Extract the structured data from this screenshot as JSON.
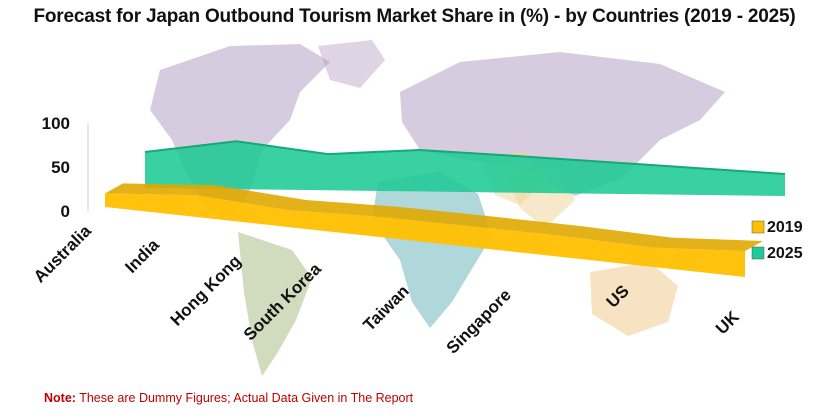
{
  "chart_data": {
    "type": "area",
    "title": "Forecast for Japan Outbound Tourism Market Share in (%) - by Countries (2019 - 2025)",
    "categories": [
      "Australia",
      "India",
      "Hong Kong",
      "South Korea",
      "Taiwan",
      "Singapore",
      "US",
      "UK"
    ],
    "yticks": [
      0,
      50,
      100
    ],
    "ylim": [
      0,
      100
    ],
    "legend_position": "right",
    "series": [
      {
        "name": "2019",
        "values": [
          12,
          25,
          14,
          18,
          17,
          15,
          10,
          20
        ],
        "color": "#ffc000"
      },
      {
        "name": "2025",
        "values": [
          55,
          78,
          62,
          74,
          70,
          65,
          60,
          55
        ],
        "color": "#1ec995"
      }
    ],
    "note_label": "Note:",
    "note_text": " These are Dummy Figures; Actual Data Given in The Report",
    "background": "world-map"
  }
}
